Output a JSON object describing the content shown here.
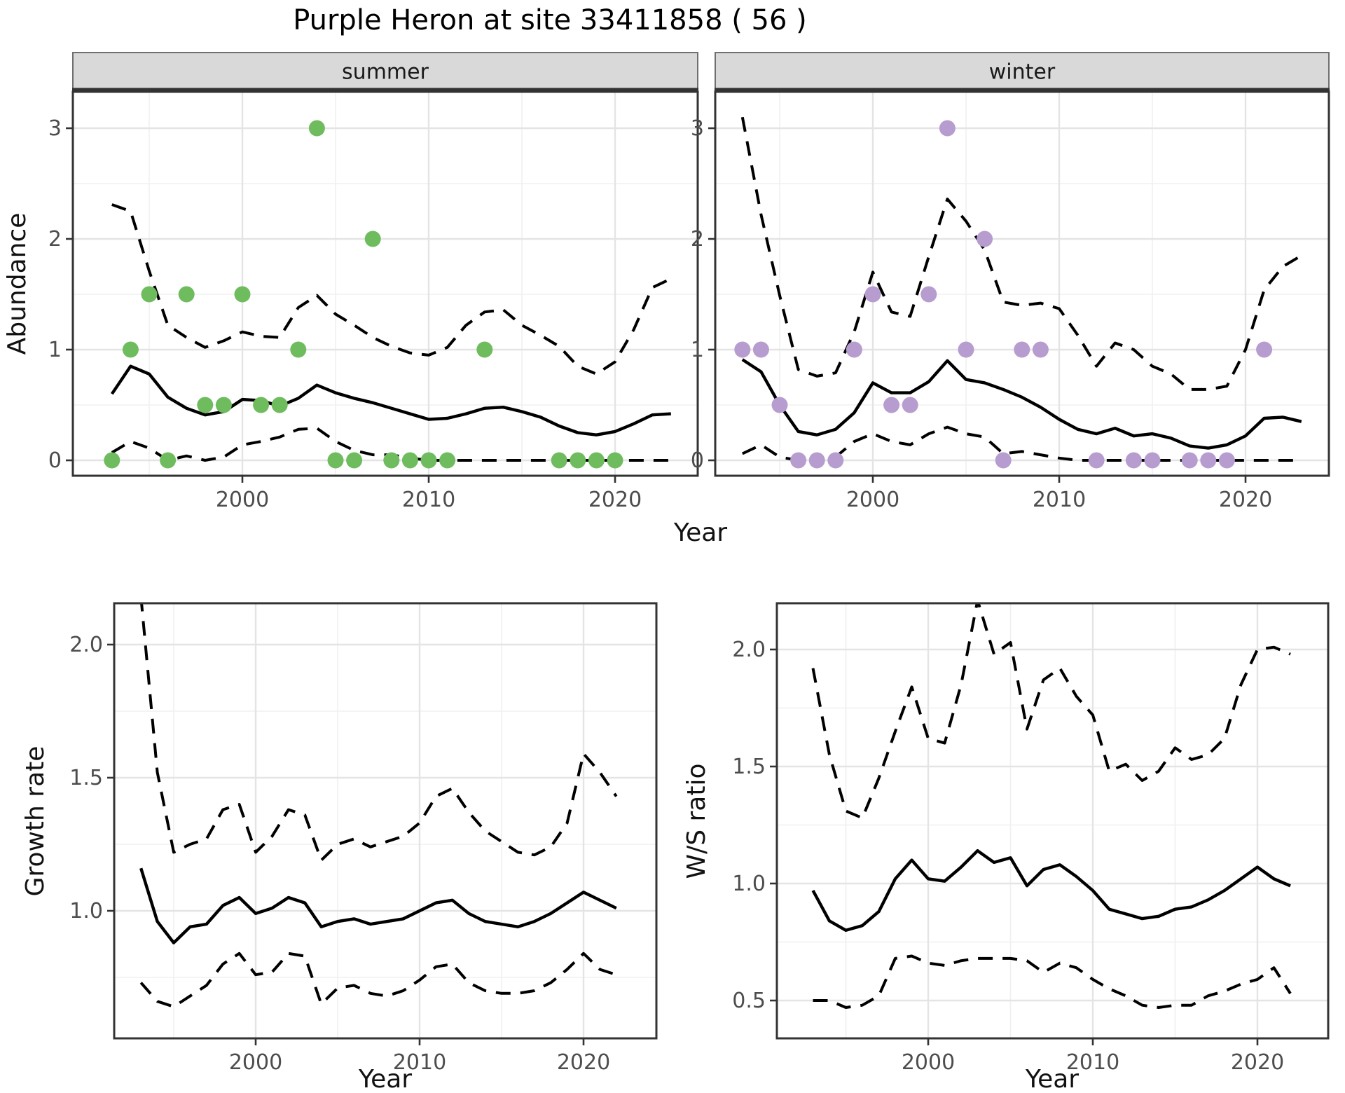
{
  "title": "Purple Heron at site 33411858 ( 56 )",
  "colors": {
    "summer_point": "#6ebc5e",
    "winter_point": "#b79ccf",
    "line": "#000000",
    "strip_bg": "#d9d9d9",
    "strip_border": "#6f6f6f",
    "panel_border": "#333333",
    "grid_major": "#e4e4e4",
    "grid_minor": "#f0f0f0",
    "axis_text": "#4d4d4d",
    "axis_title": "#111111"
  },
  "chart_data": [
    {
      "id": "abundance_summer",
      "type": "line",
      "facet_label": "summer",
      "xlabel": "Year",
      "ylabel": "Abundance",
      "xlim": [
        1991.0,
        2024.4
      ],
      "ylim": [
        -0.13,
        3.33
      ],
      "xticks": {
        "major": [
          2000,
          2010,
          2020
        ],
        "minor": [
          1995,
          2005,
          2015
        ],
        "labels": [
          "2000",
          "2010",
          "2020"
        ]
      },
      "yticks": {
        "major": [
          0,
          1,
          2,
          3
        ],
        "minor": [
          0.5,
          1.5,
          2.5
        ],
        "labels": [
          "0",
          "1",
          "2",
          "3"
        ]
      },
      "points": {
        "color_key": "summer_point",
        "data": [
          [
            1993,
            0
          ],
          [
            1994,
            1
          ],
          [
            1995,
            1.5
          ],
          [
            1996,
            0
          ],
          [
            1997,
            1.5
          ],
          [
            1998,
            0.5
          ],
          [
            1999,
            0.5
          ],
          [
            2000,
            1.5
          ],
          [
            2001,
            0.5
          ],
          [
            2002,
            0.5
          ],
          [
            2003,
            1
          ],
          [
            2004,
            3
          ],
          [
            2005,
            0
          ],
          [
            2006,
            0
          ],
          [
            2007,
            2
          ],
          [
            2008,
            0
          ],
          [
            2009,
            0
          ],
          [
            2010,
            0
          ],
          [
            2011,
            0
          ],
          [
            2013,
            1
          ],
          [
            2017,
            0
          ],
          [
            2018,
            0
          ],
          [
            2019,
            0
          ],
          [
            2020,
            0
          ]
        ]
      },
      "years": [
        1993,
        1994,
        1995,
        1996,
        1997,
        1998,
        1999,
        2000,
        2001,
        2002,
        2003,
        2004,
        2005,
        2006,
        2007,
        2008,
        2009,
        2010,
        2011,
        2012,
        2013,
        2014,
        2015,
        2016,
        2017,
        2018,
        2019,
        2020,
        2021,
        2022,
        2023
      ],
      "series": [
        {
          "name": "upper_ci",
          "style": "dashed",
          "y": [
            2.31,
            2.25,
            1.71,
            1.22,
            1.11,
            1.02,
            1.08,
            1.16,
            1.12,
            1.11,
            1.38,
            1.49,
            1.32,
            1.22,
            1.11,
            1.03,
            0.97,
            0.95,
            1.02,
            1.22,
            1.34,
            1.36,
            1.22,
            1.13,
            1.03,
            0.85,
            0.78,
            0.89,
            1.18,
            1.56,
            1.64
          ]
        },
        {
          "name": "median",
          "style": "solid",
          "y": [
            0.6,
            0.85,
            0.78,
            0.57,
            0.47,
            0.41,
            0.44,
            0.55,
            0.54,
            0.49,
            0.56,
            0.68,
            0.61,
            0.56,
            0.52,
            0.47,
            0.42,
            0.37,
            0.38,
            0.42,
            0.47,
            0.48,
            0.44,
            0.39,
            0.31,
            0.25,
            0.23,
            0.26,
            0.33,
            0.41,
            0.42
          ]
        },
        {
          "name": "lower_ci",
          "style": "dashed",
          "y": [
            0.07,
            0.17,
            0.11,
            0.0,
            0.04,
            0.0,
            0.03,
            0.14,
            0.17,
            0.21,
            0.28,
            0.29,
            0.17,
            0.09,
            0.05,
            0.05,
            0.02,
            0,
            0,
            0,
            0,
            0,
            0,
            0,
            0,
            0,
            0,
            0,
            0,
            0,
            0
          ]
        }
      ]
    },
    {
      "id": "abundance_winter",
      "type": "line",
      "facet_label": "winter",
      "xlabel": "Year",
      "ylabel": "Abundance",
      "xlim": [
        1991.5,
        2024.5
      ],
      "ylim": [
        -0.13,
        3.33
      ],
      "xticks": {
        "major": [
          2000,
          2010,
          2020
        ],
        "minor": [
          1995,
          2005,
          2015
        ],
        "labels": [
          "2000",
          "2010",
          "2020"
        ]
      },
      "yticks": {
        "major": [
          0,
          1,
          2,
          3
        ],
        "minor": [
          0.5,
          1.5,
          2.5
        ],
        "labels": [
          "0",
          "1",
          "2",
          "3"
        ]
      },
      "points": {
        "color_key": "winter_point",
        "data": [
          [
            1993,
            1
          ],
          [
            1994,
            1
          ],
          [
            1995,
            0.5
          ],
          [
            1996,
            0
          ],
          [
            1997,
            0
          ],
          [
            1998,
            0
          ],
          [
            1999,
            1
          ],
          [
            2000,
            1.5
          ],
          [
            2001,
            0.5
          ],
          [
            2002,
            0.5
          ],
          [
            2003,
            1.5
          ],
          [
            2004,
            3
          ],
          [
            2005,
            1
          ],
          [
            2006,
            2
          ],
          [
            2007,
            0
          ],
          [
            2008,
            1
          ],
          [
            2009,
            1
          ],
          [
            2012,
            0
          ],
          [
            2014,
            0
          ],
          [
            2015,
            0
          ],
          [
            2017,
            0
          ],
          [
            2018,
            0
          ],
          [
            2019,
            0
          ],
          [
            2021,
            1
          ]
        ]
      },
      "years": [
        1993,
        1994,
        1995,
        1996,
        1997,
        1998,
        1999,
        2000,
        2001,
        2002,
        2003,
        2004,
        2005,
        2006,
        2007,
        2008,
        2009,
        2010,
        2011,
        2012,
        2013,
        2014,
        2015,
        2016,
        2017,
        2018,
        2019,
        2020,
        2021,
        2022,
        2023
      ],
      "series": [
        {
          "name": "upper_ci",
          "style": "dashed",
          "y": [
            3.1,
            2.22,
            1.49,
            0.82,
            0.76,
            0.79,
            1.16,
            1.7,
            1.34,
            1.3,
            1.84,
            2.36,
            2.16,
            1.9,
            1.43,
            1.4,
            1.42,
            1.37,
            1.13,
            0.85,
            1.06,
            1.0,
            0.85,
            0.78,
            0.64,
            0.64,
            0.67,
            1.0,
            1.54,
            1.75,
            1.85
          ]
        },
        {
          "name": "median",
          "style": "solid",
          "y": [
            0.91,
            0.8,
            0.5,
            0.26,
            0.23,
            0.28,
            0.43,
            0.7,
            0.61,
            0.61,
            0.71,
            0.9,
            0.73,
            0.7,
            0.64,
            0.57,
            0.48,
            0.37,
            0.28,
            0.24,
            0.29,
            0.22,
            0.24,
            0.2,
            0.13,
            0.11,
            0.14,
            0.22,
            0.38,
            0.39,
            0.35
          ]
        },
        {
          "name": "lower_ci",
          "style": "dashed",
          "y": [
            0.06,
            0.14,
            0.03,
            0,
            0,
            0.03,
            0.17,
            0.24,
            0.17,
            0.14,
            0.24,
            0.3,
            0.24,
            0.21,
            0.06,
            0.08,
            0.05,
            0.02,
            0,
            0,
            0,
            0,
            0,
            0,
            0,
            0,
            0,
            0,
            0,
            0,
            0
          ]
        }
      ]
    },
    {
      "id": "growth_rate",
      "type": "line",
      "facet_label": null,
      "xlabel": "Year",
      "ylabel": "Growth rate",
      "xlim": [
        1991.4,
        2024.4
      ],
      "ylim": [
        0.52,
        2.16
      ],
      "xticks": {
        "major": [
          2000,
          2010,
          2020
        ],
        "minor": [
          1995,
          2005,
          2015
        ],
        "labels": [
          "2000",
          "2010",
          "2020"
        ]
      },
      "yticks": {
        "major": [
          1.0,
          1.5,
          2.0
        ],
        "minor": [
          0.75,
          1.25,
          1.75
        ],
        "labels": [
          "1.0",
          "1.5",
          "2.0"
        ]
      },
      "points": null,
      "years": [
        1993,
        1994,
        1995,
        1996,
        1997,
        1998,
        1999,
        2000,
        2001,
        2002,
        2003,
        2004,
        2005,
        2006,
        2007,
        2008,
        2009,
        2010,
        2011,
        2012,
        2013,
        2014,
        2015,
        2016,
        2017,
        2018,
        2019,
        2020,
        2021,
        2022
      ],
      "series": [
        {
          "name": "upper_ci",
          "style": "dashed",
          "y": [
            2.18,
            1.52,
            1.22,
            1.25,
            1.27,
            1.38,
            1.4,
            1.22,
            1.28,
            1.38,
            1.36,
            1.19,
            1.25,
            1.27,
            1.24,
            1.26,
            1.28,
            1.33,
            1.43,
            1.46,
            1.37,
            1.3,
            1.26,
            1.22,
            1.21,
            1.24,
            1.33,
            1.59,
            1.52,
            1.43
          ]
        },
        {
          "name": "median",
          "style": "solid",
          "y": [
            1.16,
            0.96,
            0.88,
            0.94,
            0.95,
            1.02,
            1.05,
            0.99,
            1.01,
            1.05,
            1.03,
            0.94,
            0.96,
            0.97,
            0.95,
            0.96,
            0.97,
            1.0,
            1.03,
            1.04,
            0.99,
            0.96,
            0.95,
            0.94,
            0.96,
            0.99,
            1.03,
            1.07,
            1.04,
            1.01
          ]
        },
        {
          "name": "lower_ci",
          "style": "dashed",
          "y": [
            0.73,
            0.66,
            0.64,
            0.68,
            0.72,
            0.8,
            0.84,
            0.76,
            0.77,
            0.84,
            0.83,
            0.65,
            0.71,
            0.72,
            0.69,
            0.68,
            0.7,
            0.74,
            0.79,
            0.8,
            0.73,
            0.7,
            0.69,
            0.69,
            0.7,
            0.73,
            0.78,
            0.84,
            0.78,
            0.76
          ]
        }
      ]
    },
    {
      "id": "ws_ratio",
      "type": "line",
      "facet_label": null,
      "xlabel": "Year",
      "ylabel": "W/S ratio",
      "xlim": [
        1991.8,
        2024.3
      ],
      "ylim": [
        0.34,
        2.2
      ],
      "xticks": {
        "major": [
          2000,
          2010,
          2020
        ],
        "minor": [
          1995,
          2005,
          2015
        ],
        "labels": [
          "2000",
          "2010",
          "2020"
        ]
      },
      "yticks": {
        "major": [
          0.5,
          1.0,
          1.5,
          2.0
        ],
        "minor": [
          0.75,
          1.25,
          1.75
        ],
        "labels": [
          "0.5",
          "1.0",
          "1.5",
          "2.0"
        ]
      },
      "points": null,
      "years": [
        1993,
        1994,
        1995,
        1996,
        1997,
        1998,
        1999,
        2000,
        2001,
        2002,
        2003,
        2004,
        2005,
        2006,
        2007,
        2008,
        2009,
        2010,
        2011,
        2012,
        2013,
        2014,
        2015,
        2016,
        2017,
        2018,
        2019,
        2020,
        2021,
        2022
      ],
      "series": [
        {
          "name": "upper_ci",
          "style": "dashed",
          "y": [
            1.92,
            1.55,
            1.31,
            1.28,
            1.45,
            1.65,
            1.84,
            1.62,
            1.6,
            1.85,
            2.21,
            1.98,
            2.03,
            1.66,
            1.87,
            1.92,
            1.8,
            1.72,
            1.48,
            1.51,
            1.44,
            1.48,
            1.58,
            1.53,
            1.55,
            1.62,
            1.85,
            2.0,
            2.01,
            1.98
          ]
        },
        {
          "name": "median",
          "style": "solid",
          "y": [
            0.97,
            0.84,
            0.8,
            0.82,
            0.88,
            1.02,
            1.1,
            1.02,
            1.01,
            1.07,
            1.14,
            1.09,
            1.11,
            0.99,
            1.06,
            1.08,
            1.03,
            0.97,
            0.89,
            0.87,
            0.85,
            0.86,
            0.89,
            0.9,
            0.93,
            0.97,
            1.02,
            1.07,
            1.02,
            0.99
          ]
        },
        {
          "name": "lower_ci",
          "style": "dashed",
          "y": [
            0.5,
            0.5,
            0.47,
            0.48,
            0.52,
            0.68,
            0.69,
            0.66,
            0.65,
            0.67,
            0.68,
            0.68,
            0.68,
            0.67,
            0.62,
            0.66,
            0.64,
            0.59,
            0.55,
            0.52,
            0.48,
            0.47,
            0.48,
            0.48,
            0.52,
            0.54,
            0.57,
            0.59,
            0.64,
            0.53
          ]
        }
      ]
    }
  ],
  "axis_titles": {
    "x_top": "Year",
    "x_bottom_left": "Year",
    "x_bottom_right": "Year",
    "y_top": "Abundance",
    "y_bottom_left": "Growth rate",
    "y_bottom_right": "W/S ratio"
  }
}
